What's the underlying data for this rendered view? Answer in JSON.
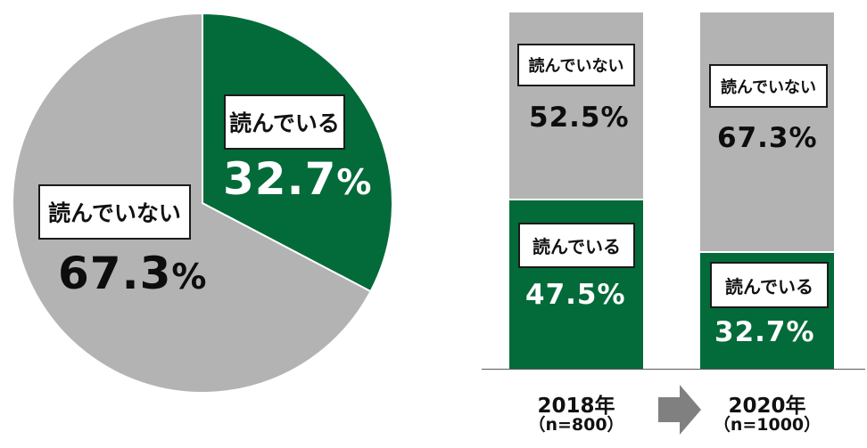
{
  "colors": {
    "reading": "#036b39",
    "not_reading": "#b3b3b3",
    "arrow": "#808080",
    "axis": "#595959"
  },
  "chart_data": [
    {
      "type": "pie",
      "title": "",
      "categories": [
        "読んでいる",
        "読んでいない"
      ],
      "values": [
        32.7,
        67.3
      ],
      "unit": "%",
      "start_angle": "12 o'clock, clockwise",
      "labels": {
        "reading": {
          "name": "読んでいる",
          "value": "32.7",
          "unit": "%"
        },
        "not_reading": {
          "name": "読んでいない",
          "value": "67.3",
          "unit": "%"
        }
      }
    },
    {
      "type": "bar",
      "stacked": true,
      "title": "",
      "categories": [
        "2018年（n=800）",
        "2020年（n=1000）"
      ],
      "series": [
        {
          "name": "読んでいる",
          "values": [
            47.5,
            32.7
          ]
        },
        {
          "name": "読んでいない",
          "values": [
            52.5,
            67.3
          ]
        }
      ],
      "ylim": [
        0,
        100
      ],
      "grid": false,
      "annotations": [
        "arrow from 2018 to 2020"
      ],
      "bars": [
        {
          "year": "2018年",
          "n": "（n=800）",
          "reading": {
            "name": "読んでいる",
            "value": "47.5",
            "unit": "%"
          },
          "not_reading": {
            "name": "読んでいない",
            "value": "52.5",
            "unit": "%"
          }
        },
        {
          "year": "2020年",
          "n": "（n=1000）",
          "reading": {
            "name": "読んでいる",
            "value": "32.7",
            "unit": "%"
          },
          "not_reading": {
            "name": "読んでいない",
            "value": "67.3",
            "unit": "%"
          }
        }
      ]
    }
  ]
}
